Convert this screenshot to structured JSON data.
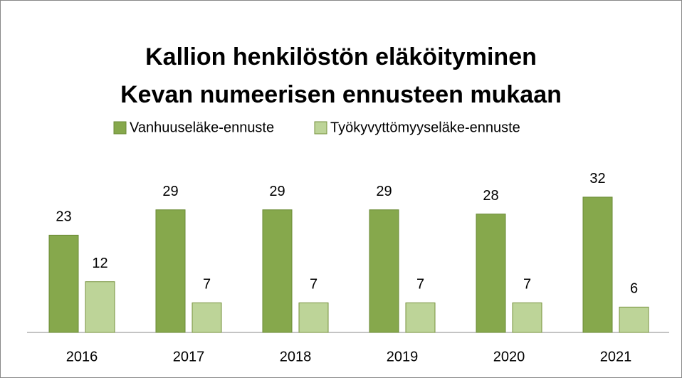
{
  "chart_data": {
    "type": "bar",
    "title": [
      "Kallion henkilöstön eläköityminen",
      "Kevan numeerisen ennusteen mukaan"
    ],
    "categories": [
      "2016",
      "2017",
      "2018",
      "2019",
      "2020",
      "2021"
    ],
    "series": [
      {
        "name": "Vanhuuseläke-ennuste",
        "color": "#86a84c",
        "values": [
          23,
          29,
          29,
          29,
          28,
          32
        ]
      },
      {
        "name": "Työkyvyttömyyseläke-ennuste",
        "color": "#bdd498",
        "values": [
          12,
          7,
          7,
          7,
          7,
          6
        ]
      }
    ],
    "legend": "top"
  }
}
